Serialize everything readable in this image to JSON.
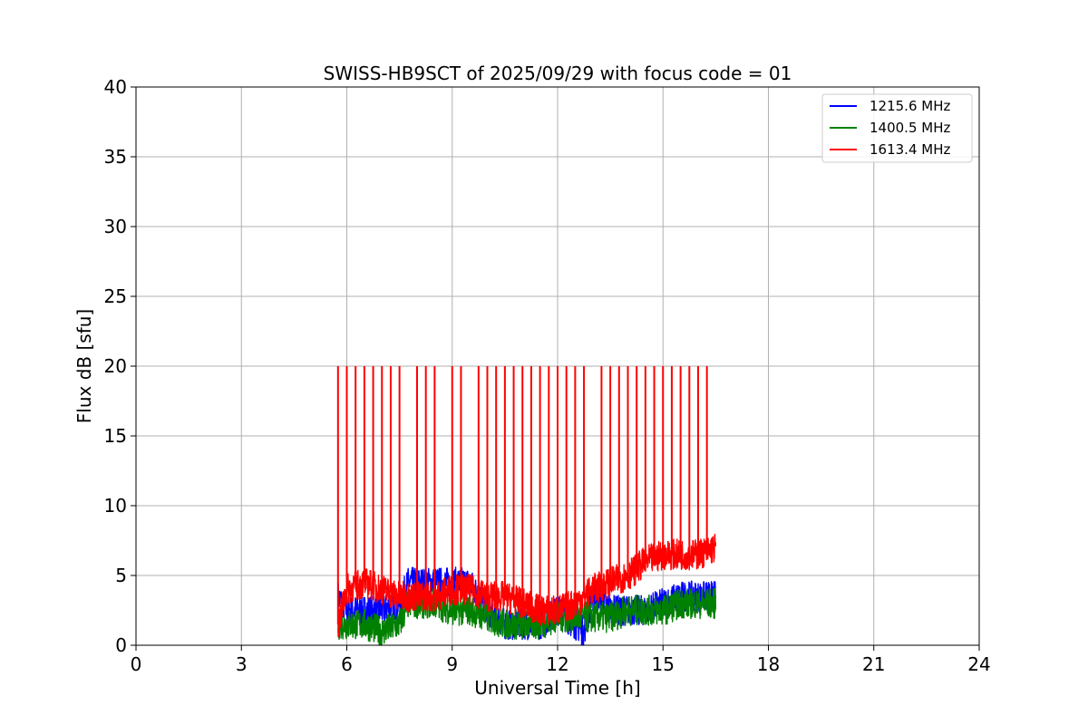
{
  "chart_data": {
    "type": "line",
    "title": "SWISS-HB9SCT of 2025/09/29 with focus code = 01",
    "xlabel": "Universal Time [h]",
    "ylabel": "Flux dB [sfu]",
    "xlim": [
      0,
      24
    ],
    "ylim": [
      0,
      40
    ],
    "xticks": [
      0,
      3,
      6,
      9,
      12,
      15,
      18,
      21,
      24
    ],
    "yticks": [
      0,
      5,
      10,
      15,
      20,
      25,
      30,
      35,
      40
    ],
    "grid": true,
    "legend_position": "top-right",
    "series": [
      {
        "name": "1215.6 MHz",
        "color": "#0000ff",
        "x": [
          5.75,
          6.0,
          6.5,
          7.0,
          7.5,
          7.75,
          8.0,
          8.5,
          9.0,
          9.5,
          10.0,
          10.5,
          11.0,
          11.5,
          12.0,
          12.5,
          12.75,
          13.0,
          13.25,
          13.5,
          14.0,
          14.5,
          15.0,
          15.5,
          16.0,
          16.5
        ],
        "values": [
          3.5,
          2.5,
          2.5,
          2.5,
          3.0,
          4.5,
          4.5,
          4.5,
          4.5,
          4.5,
          2.5,
          1.5,
          1.5,
          1.5,
          2.5,
          1.5,
          1.0,
          3.5,
          3.5,
          2.5,
          2.5,
          2.5,
          3.0,
          3.5,
          3.5,
          3.5
        ]
      },
      {
        "name": "1400.5 MHz",
        "color": "#008000",
        "x": [
          5.75,
          6.0,
          6.5,
          7.0,
          7.5,
          7.75,
          8.0,
          8.5,
          9.0,
          9.5,
          10.0,
          10.5,
          11.0,
          11.5,
          12.0,
          12.5,
          13.0,
          13.5,
          14.0,
          14.5,
          15.0,
          15.5,
          16.0,
          16.5
        ],
        "values": [
          1.5,
          1.5,
          1.5,
          1.0,
          1.5,
          3.0,
          3.0,
          3.0,
          2.5,
          2.5,
          2.0,
          1.5,
          1.5,
          1.5,
          2.0,
          2.0,
          2.0,
          2.0,
          2.5,
          2.5,
          2.5,
          3.0,
          3.0,
          3.0
        ]
      },
      {
        "name": "1613.4 MHz",
        "color": "#ff0000",
        "x": [
          5.75,
          6.0,
          6.5,
          7.0,
          7.5,
          8.0,
          8.5,
          9.0,
          9.5,
          10.0,
          10.5,
          11.0,
          11.5,
          12.0,
          12.5,
          13.0,
          13.5,
          14.0,
          14.5,
          15.0,
          15.5,
          16.0,
          16.5
        ],
        "values": [
          1.5,
          4.0,
          4.5,
          4.0,
          3.5,
          3.5,
          3.5,
          4.0,
          4.0,
          3.5,
          3.5,
          3.0,
          2.5,
          2.5,
          3.0,
          4.0,
          4.5,
          5.0,
          6.0,
          6.5,
          6.5,
          6.5,
          7.0
        ]
      }
    ],
    "spikes": {
      "series": "1613.4 MHz",
      "peak": 20,
      "x": [
        5.75,
        6.0,
        6.25,
        6.5,
        6.75,
        7.0,
        7.25,
        7.5,
        8.0,
        8.25,
        8.5,
        9.0,
        9.25,
        9.75,
        10.0,
        10.25,
        10.5,
        10.75,
        11.0,
        11.25,
        11.5,
        11.75,
        12.0,
        12.25,
        12.5,
        12.75,
        13.25,
        13.5,
        13.75,
        14.0,
        14.25,
        14.5,
        14.75,
        15.0,
        15.25,
        15.5,
        15.75,
        16.0,
        16.25
      ]
    }
  }
}
